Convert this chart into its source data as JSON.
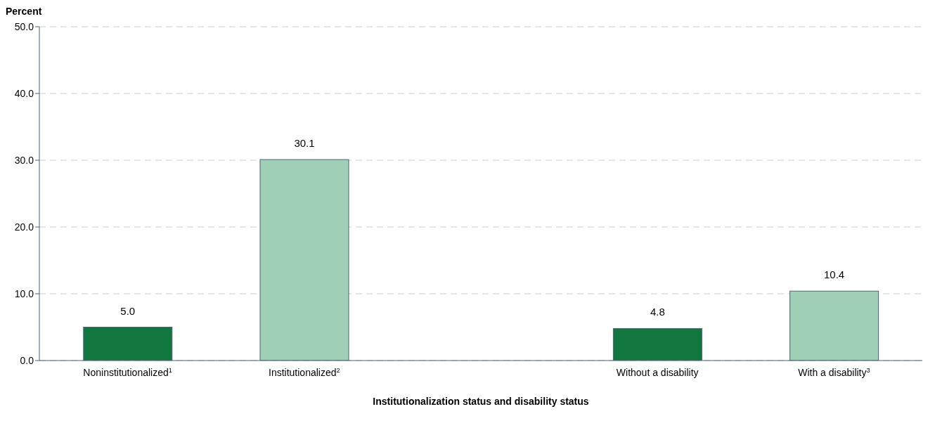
{
  "chart_data": {
    "type": "bar",
    "ylabel": "Percent",
    "xlabel": "Institutionalization status and disability status",
    "categories": [
      "Noninstitutionalized$^{1}$",
      "Institutionalized$^{2}$",
      null,
      "Without a disability",
      "With a disability$^{3}$"
    ],
    "values": [
      5.0,
      30.1,
      null,
      4.8,
      10.4
    ],
    "colors": [
      "#11773f",
      "#9fcfb5",
      null,
      "#11773f",
      "#9fcfb5"
    ],
    "value_labels": [
      "5.0",
      "30.1",
      null,
      "4.8",
      "10.4"
    ],
    "ylim": [
      0,
      50
    ],
    "yticks": [
      {
        "value": 0,
        "label": "0.0"
      },
      {
        "value": 10,
        "label": "10.0"
      },
      {
        "value": 20,
        "label": "20.0"
      },
      {
        "value": 30,
        "label": "30.0"
      },
      {
        "value": 40,
        "label": "40.0"
      },
      {
        "value": 50,
        "label": "50.0"
      }
    ],
    "grid": "y"
  }
}
